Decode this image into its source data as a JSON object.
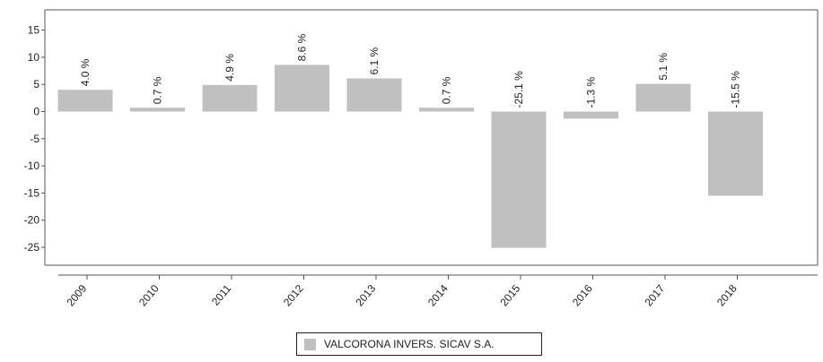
{
  "chart_data": {
    "type": "bar",
    "categories": [
      "2009",
      "2010",
      "2011",
      "2012",
      "2013",
      "2014",
      "2015",
      "2016",
      "2017",
      "2018"
    ],
    "series": [
      {
        "name": "VALCORONA INVERS. SICAV S.A.",
        "values": [
          4.0,
          0.7,
          4.9,
          8.6,
          6.1,
          0.7,
          -25.1,
          -1.3,
          5.1,
          -15.5
        ],
        "labels": [
          "4.0 %",
          "0.7 %",
          "4.9 %",
          "8.6 %",
          "6.1 %",
          "0.7 %",
          "-25.1 %",
          "-1.3 %",
          "5.1 %",
          "-15.5 %"
        ],
        "color": "#c0c0c0"
      }
    ],
    "y_ticks": [
      "15",
      "10",
      "5",
      "0",
      "-5",
      "-10",
      "-15",
      "-20",
      "-25"
    ],
    "ylim": [
      -28,
      18
    ],
    "grid": false,
    "legend_position": "bottom-center"
  }
}
